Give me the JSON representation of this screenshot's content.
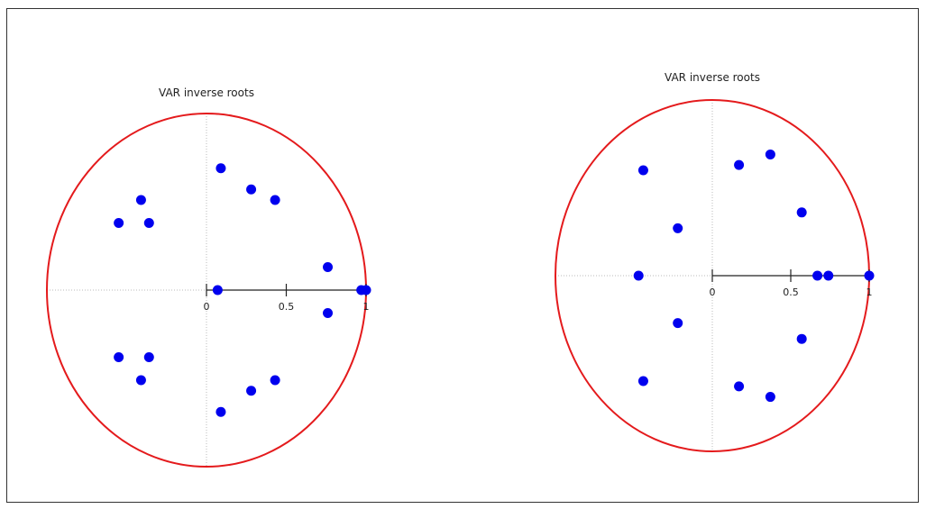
{
  "chart_data": [
    {
      "type": "scatter",
      "title": "VAR inverse roots",
      "xlabel": "",
      "ylabel": "",
      "xlim": [
        -1,
        1
      ],
      "ylim": [
        -1,
        1
      ],
      "grid": false,
      "x_ticks": [
        0,
        0.5,
        1
      ],
      "x_tick_labels": [
        "0",
        "0.5",
        "1"
      ],
      "circle_color": "#e41a1c",
      "point_color": "#0000ee",
      "points": [
        {
          "x": 0.09,
          "y": 0.69
        },
        {
          "x": 0.28,
          "y": 0.57
        },
        {
          "x": 0.43,
          "y": 0.51
        },
        {
          "x": -0.41,
          "y": 0.51
        },
        {
          "x": -0.55,
          "y": 0.38
        },
        {
          "x": -0.36,
          "y": 0.38
        },
        {
          "x": 0.76,
          "y": 0.13
        },
        {
          "x": 0.07,
          "y": 0.0
        },
        {
          "x": 0.97,
          "y": 0.0
        },
        {
          "x": 1.0,
          "y": 0.0
        },
        {
          "x": 0.76,
          "y": -0.13
        },
        {
          "x": -0.55,
          "y": -0.38
        },
        {
          "x": -0.36,
          "y": -0.38
        },
        {
          "x": -0.41,
          "y": -0.51
        },
        {
          "x": 0.43,
          "y": -0.51
        },
        {
          "x": 0.28,
          "y": -0.57
        },
        {
          "x": 0.09,
          "y": -0.69
        }
      ]
    },
    {
      "type": "scatter",
      "title": "VAR inverse roots",
      "xlabel": "",
      "ylabel": "",
      "xlim": [
        -1,
        1
      ],
      "ylim": [
        -1,
        1
      ],
      "grid": false,
      "x_ticks": [
        0,
        0.5,
        1
      ],
      "x_tick_labels": [
        "0",
        "0.5",
        "1"
      ],
      "circle_color": "#e41a1c",
      "point_color": "#0000ee",
      "points": [
        {
          "x": -0.44,
          "y": 0.6
        },
        {
          "x": 0.17,
          "y": 0.63
        },
        {
          "x": 0.37,
          "y": 0.69
        },
        {
          "x": 0.57,
          "y": 0.36
        },
        {
          "x": -0.22,
          "y": 0.27
        },
        {
          "x": -0.47,
          "y": 0.0
        },
        {
          "x": 0.67,
          "y": 0.0
        },
        {
          "x": 0.74,
          "y": 0.0
        },
        {
          "x": 1.0,
          "y": 0.0
        },
        {
          "x": -0.22,
          "y": -0.27
        },
        {
          "x": 0.57,
          "y": -0.36
        },
        {
          "x": -0.44,
          "y": -0.6
        },
        {
          "x": 0.17,
          "y": -0.63
        },
        {
          "x": 0.37,
          "y": -0.69
        }
      ]
    }
  ]
}
